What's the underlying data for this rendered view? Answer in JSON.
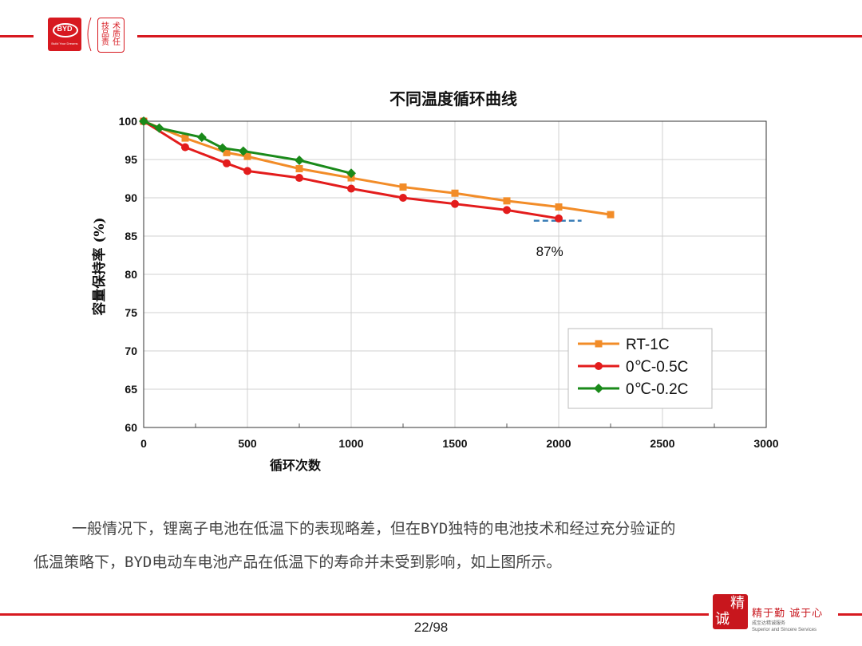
{
  "header": {
    "logo_text": "BYD",
    "logo_sub": "Build Your Dreams",
    "seal_chars": [
      "技",
      "术",
      "品",
      "质",
      "责",
      "任"
    ]
  },
  "chart_data": {
    "type": "line",
    "title": "不同温度循环曲线",
    "xlabel": "循环次数",
    "ylabel": "容量保持率 (%)",
    "xlim": [
      0,
      3000
    ],
    "ylim": [
      60,
      100
    ],
    "xticks": [
      0,
      500,
      1000,
      1500,
      2000,
      2500,
      3000
    ],
    "yticks": [
      60,
      65,
      70,
      75,
      80,
      85,
      90,
      95,
      100
    ],
    "grid": true,
    "legend_position": "bottom-right",
    "series": [
      {
        "name": "RT-1C",
        "color": "#f28c28",
        "marker": "square",
        "points": [
          [
            0,
            100
          ],
          [
            200,
            97.8
          ],
          [
            400,
            95.9
          ],
          [
            500,
            95.4
          ],
          [
            750,
            93.8
          ],
          [
            1000,
            92.6
          ],
          [
            1250,
            91.4
          ],
          [
            1500,
            90.6
          ],
          [
            1750,
            89.6
          ],
          [
            2000,
            88.8
          ],
          [
            2250,
            87.8
          ]
        ]
      },
      {
        "name": "0℃-0.5C",
        "color": "#e31c1c",
        "marker": "circle",
        "points": [
          [
            0,
            100
          ],
          [
            200,
            96.6
          ],
          [
            400,
            94.5
          ],
          [
            500,
            93.5
          ],
          [
            750,
            92.6
          ],
          [
            1000,
            91.2
          ],
          [
            1250,
            90.0
          ],
          [
            1500,
            89.2
          ],
          [
            1750,
            88.4
          ],
          [
            2000,
            87.3
          ]
        ]
      },
      {
        "name": "0℃-0.2C",
        "color": "#1a8a1a",
        "marker": "diamond",
        "points": [
          [
            0,
            100
          ],
          [
            75,
            99.1
          ],
          [
            280,
            97.9
          ],
          [
            380,
            96.5
          ],
          [
            480,
            96.1
          ],
          [
            750,
            94.9
          ],
          [
            1000,
            93.2
          ]
        ]
      }
    ],
    "reference": {
      "value": 87,
      "x_range": [
        1880,
        2110
      ],
      "label": "87%",
      "color": "#3d7fb8"
    }
  },
  "body_text": {
    "line1": "一般情况下，锂离子电池在低温下的表现略差，但在BYD独特的电池技术和经过充分验证的",
    "line2": "低温策略下，BYD电动车电池产品在低温下的寿命并未受到影响，如上图所示。"
  },
  "footer": {
    "page": "22/98",
    "seal_chars": [
      "精",
      "诚"
    ],
    "slogan": "精于勤 诚于心",
    "slogan_cn": "成至达精诚服务",
    "slogan_en": "Superior and Sincere Services"
  }
}
